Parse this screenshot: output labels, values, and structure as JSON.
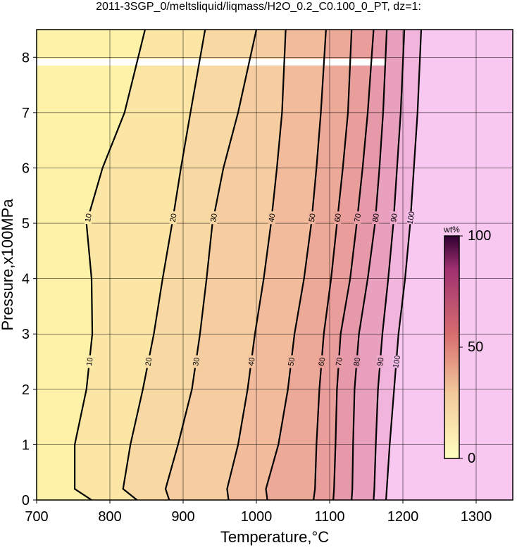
{
  "chart_data": {
    "type": "contour",
    "title": "2011-3SGP_0/meltsliquid/liqmass/H2O_0.2_C0.100_0_PT, dz=1:",
    "x_label": "Temperature,°C",
    "y_label": "Pressure,x100MPa",
    "xlim": [
      700,
      1350
    ],
    "ylim": [
      0,
      8.5
    ],
    "xticks": [
      700,
      800,
      900,
      1000,
      1100,
      1200,
      1300
    ],
    "yticks": [
      0,
      1,
      2,
      3,
      4,
      5,
      6,
      7,
      8
    ],
    "grid": true,
    "pressures": [
      0,
      0.2,
      1,
      2,
      3,
      4,
      5,
      6,
      7,
      8.5
    ],
    "contours": [
      {
        "level": 10,
        "temperatures": [
          775,
          752,
          752,
          768,
          776,
          775,
          768,
          790,
          820,
          848
        ]
      },
      {
        "level": 20,
        "temperatures": [
          837,
          818,
          828,
          845,
          860,
          872,
          885,
          897,
          910,
          930
        ]
      },
      {
        "level": 30,
        "temperatures": [
          881,
          876,
          893,
          912,
          923,
          932,
          940,
          955,
          975,
          1000
        ]
      },
      {
        "level": 40,
        "temperatures": [
          962,
          960,
          975,
          988,
          998,
          1010,
          1020,
          1028,
          1035,
          1040
        ]
      },
      {
        "level": 50,
        "temperatures": [
          1015,
          1013,
          1030,
          1043,
          1052,
          1065,
          1075,
          1082,
          1088,
          1095
        ]
      },
      {
        "level": 60,
        "temperatures": [
          1078,
          1080,
          1082,
          1086,
          1092,
          1102,
          1110,
          1118,
          1125,
          1130
        ]
      },
      {
        "level": 70,
        "temperatures": [
          1105,
          1106,
          1108,
          1110,
          1115,
          1128,
          1137,
          1145,
          1152,
          1160
        ]
      },
      {
        "level": 80,
        "temperatures": [
          1130,
          1131,
          1132,
          1134,
          1140,
          1152,
          1162,
          1168,
          1173,
          1178
        ]
      },
      {
        "level": 90,
        "temperatures": [
          1160,
          1161,
          1163,
          1166,
          1172,
          1180,
          1187,
          1192,
          1197,
          1202
        ]
      },
      {
        "level": 100,
        "temperatures": [
          1177,
          1178,
          1182,
          1188,
          1194,
          1203,
          1210,
          1215,
          1220,
          1225
        ]
      }
    ],
    "colorbar": {
      "label": "wt%",
      "lim": [
        0,
        100
      ],
      "ticks": [
        0,
        50,
        100
      ]
    }
  }
}
